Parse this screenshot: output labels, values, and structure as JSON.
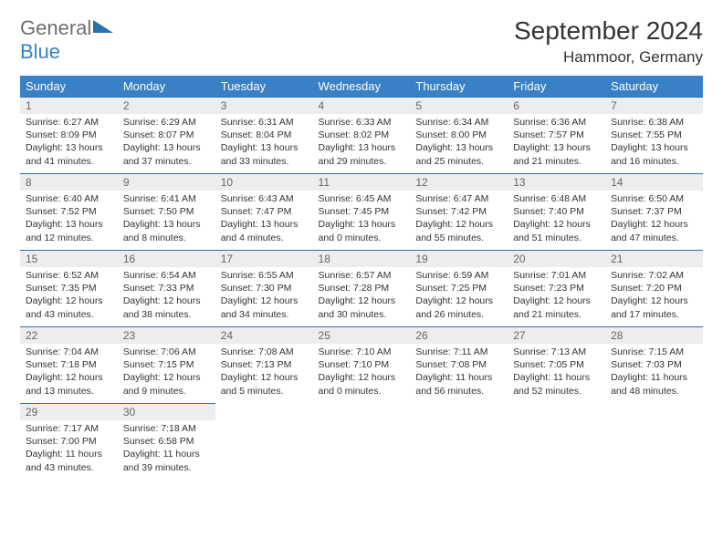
{
  "brand": {
    "name1": "General",
    "name2": "Blue"
  },
  "header": {
    "month_title": "September 2024",
    "location": "Hammoor, Germany"
  },
  "calendar": {
    "day_labels": [
      "Sunday",
      "Monday",
      "Tuesday",
      "Wednesday",
      "Thursday",
      "Friday",
      "Saturday"
    ],
    "colors": {
      "header_bg": "#3a80c4",
      "header_text": "#ffffff",
      "daynum_bg": "#eceded",
      "daynum_text": "#666666",
      "row_divider": "#2b6fb3",
      "body_text": "#333333"
    },
    "first_weekday_index": 0,
    "days": [
      {
        "n": 1,
        "sunrise": "6:27 AM",
        "sunset": "8:09 PM",
        "daylight": "13 hours and 41 minutes."
      },
      {
        "n": 2,
        "sunrise": "6:29 AM",
        "sunset": "8:07 PM",
        "daylight": "13 hours and 37 minutes."
      },
      {
        "n": 3,
        "sunrise": "6:31 AM",
        "sunset": "8:04 PM",
        "daylight": "13 hours and 33 minutes."
      },
      {
        "n": 4,
        "sunrise": "6:33 AM",
        "sunset": "8:02 PM",
        "daylight": "13 hours and 29 minutes."
      },
      {
        "n": 5,
        "sunrise": "6:34 AM",
        "sunset": "8:00 PM",
        "daylight": "13 hours and 25 minutes."
      },
      {
        "n": 6,
        "sunrise": "6:36 AM",
        "sunset": "7:57 PM",
        "daylight": "13 hours and 21 minutes."
      },
      {
        "n": 7,
        "sunrise": "6:38 AM",
        "sunset": "7:55 PM",
        "daylight": "13 hours and 16 minutes."
      },
      {
        "n": 8,
        "sunrise": "6:40 AM",
        "sunset": "7:52 PM",
        "daylight": "13 hours and 12 minutes."
      },
      {
        "n": 9,
        "sunrise": "6:41 AM",
        "sunset": "7:50 PM",
        "daylight": "13 hours and 8 minutes."
      },
      {
        "n": 10,
        "sunrise": "6:43 AM",
        "sunset": "7:47 PM",
        "daylight": "13 hours and 4 minutes."
      },
      {
        "n": 11,
        "sunrise": "6:45 AM",
        "sunset": "7:45 PM",
        "daylight": "13 hours and 0 minutes."
      },
      {
        "n": 12,
        "sunrise": "6:47 AM",
        "sunset": "7:42 PM",
        "daylight": "12 hours and 55 minutes."
      },
      {
        "n": 13,
        "sunrise": "6:48 AM",
        "sunset": "7:40 PM",
        "daylight": "12 hours and 51 minutes."
      },
      {
        "n": 14,
        "sunrise": "6:50 AM",
        "sunset": "7:37 PM",
        "daylight": "12 hours and 47 minutes."
      },
      {
        "n": 15,
        "sunrise": "6:52 AM",
        "sunset": "7:35 PM",
        "daylight": "12 hours and 43 minutes."
      },
      {
        "n": 16,
        "sunrise": "6:54 AM",
        "sunset": "7:33 PM",
        "daylight": "12 hours and 38 minutes."
      },
      {
        "n": 17,
        "sunrise": "6:55 AM",
        "sunset": "7:30 PM",
        "daylight": "12 hours and 34 minutes."
      },
      {
        "n": 18,
        "sunrise": "6:57 AM",
        "sunset": "7:28 PM",
        "daylight": "12 hours and 30 minutes."
      },
      {
        "n": 19,
        "sunrise": "6:59 AM",
        "sunset": "7:25 PM",
        "daylight": "12 hours and 26 minutes."
      },
      {
        "n": 20,
        "sunrise": "7:01 AM",
        "sunset": "7:23 PM",
        "daylight": "12 hours and 21 minutes."
      },
      {
        "n": 21,
        "sunrise": "7:02 AM",
        "sunset": "7:20 PM",
        "daylight": "12 hours and 17 minutes."
      },
      {
        "n": 22,
        "sunrise": "7:04 AM",
        "sunset": "7:18 PM",
        "daylight": "12 hours and 13 minutes."
      },
      {
        "n": 23,
        "sunrise": "7:06 AM",
        "sunset": "7:15 PM",
        "daylight": "12 hours and 9 minutes."
      },
      {
        "n": 24,
        "sunrise": "7:08 AM",
        "sunset": "7:13 PM",
        "daylight": "12 hours and 5 minutes."
      },
      {
        "n": 25,
        "sunrise": "7:10 AM",
        "sunset": "7:10 PM",
        "daylight": "12 hours and 0 minutes."
      },
      {
        "n": 26,
        "sunrise": "7:11 AM",
        "sunset": "7:08 PM",
        "daylight": "11 hours and 56 minutes."
      },
      {
        "n": 27,
        "sunrise": "7:13 AM",
        "sunset": "7:05 PM",
        "daylight": "11 hours and 52 minutes."
      },
      {
        "n": 28,
        "sunrise": "7:15 AM",
        "sunset": "7:03 PM",
        "daylight": "11 hours and 48 minutes."
      },
      {
        "n": 29,
        "sunrise": "7:17 AM",
        "sunset": "7:00 PM",
        "daylight": "11 hours and 43 minutes."
      },
      {
        "n": 30,
        "sunrise": "7:18 AM",
        "sunset": "6:58 PM",
        "daylight": "11 hours and 39 minutes."
      }
    ],
    "labels": {
      "sunrise": "Sunrise:",
      "sunset": "Sunset:",
      "daylight": "Daylight:"
    }
  }
}
